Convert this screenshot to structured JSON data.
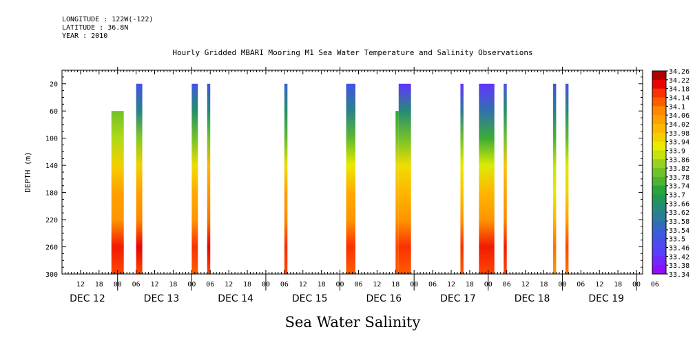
{
  "meta": {
    "longitude": "LONGITUDE : 122W(-122)",
    "latitude": "LATITUDE : 36.8N",
    "year": "YEAR : 2010"
  },
  "chart_data": {
    "type": "heatmap",
    "title": "Hourly Gridded MBARI Mooring M1 Sea Water Temperature and Salinity Observations",
    "bottom_label": "Sea Water Salinity",
    "ylabel": "DEPTH (m)",
    "ylim": [
      0,
      300
    ],
    "y_ticks": [
      20,
      60,
      100,
      140,
      180,
      220,
      260,
      300
    ],
    "x_unit": "hours since DEC 12 00:00, 2010",
    "xlim": [
      -6,
      182
    ],
    "x_hour_ticks": [
      {
        "h": 0,
        "label": "12"
      },
      {
        "h": 6,
        "label": "18"
      },
      {
        "h": 12,
        "label": "00"
      },
      {
        "h": 18,
        "label": "06"
      },
      {
        "h": 24,
        "label": "12"
      },
      {
        "h": 30,
        "label": "18"
      },
      {
        "h": 36,
        "label": "00"
      },
      {
        "h": 42,
        "label": "06"
      },
      {
        "h": 48,
        "label": "12"
      },
      {
        "h": 54,
        "label": "18"
      },
      {
        "h": 60,
        "label": "00"
      },
      {
        "h": 66,
        "label": "06"
      },
      {
        "h": 72,
        "label": "12"
      },
      {
        "h": 78,
        "label": "18"
      },
      {
        "h": 84,
        "label": "00"
      },
      {
        "h": 90,
        "label": "06"
      },
      {
        "h": 96,
        "label": "12"
      },
      {
        "h": 102,
        "label": "18"
      },
      {
        "h": 108,
        "label": "00"
      },
      {
        "h": 114,
        "label": "06"
      },
      {
        "h": 120,
        "label": "12"
      },
      {
        "h": 126,
        "label": "18"
      },
      {
        "h": 132,
        "label": "00"
      },
      {
        "h": 138,
        "label": "06"
      },
      {
        "h": 144,
        "label": "12"
      },
      {
        "h": 150,
        "label": "18"
      },
      {
        "h": 156,
        "label": "00"
      },
      {
        "h": 162,
        "label": "06"
      },
      {
        "h": 168,
        "label": "12"
      },
      {
        "h": 174,
        "label": "18"
      },
      {
        "h": 180,
        "label": "00"
      },
      {
        "h": 186,
        "label": "06"
      }
    ],
    "x_day_labels": [
      {
        "h": 0,
        "label": "DEC 12"
      },
      {
        "h": 24,
        "label": "DEC 13"
      },
      {
        "h": 48,
        "label": "DEC 14"
      },
      {
        "h": 72,
        "label": "DEC 15"
      },
      {
        "h": 96,
        "label": "DEC 16"
      },
      {
        "h": 120,
        "label": "DEC 17"
      },
      {
        "h": 144,
        "label": "DEC 18"
      },
      {
        "h": 168,
        "label": "DEC 19"
      }
    ],
    "colorbar": {
      "min": 33.34,
      "max": 34.26,
      "labels": [
        "34.26",
        "34.22",
        "34.18",
        "34.14",
        "34.1",
        "34.06",
        "34.02",
        "33.98",
        "33.94",
        "33.9",
        "33.86",
        "33.82",
        "33.78",
        "33.74",
        "33.7",
        "33.66",
        "33.62",
        "33.58",
        "33.54",
        "33.5",
        "33.46",
        "33.42",
        "33.38",
        "33.34"
      ]
    },
    "profile_depths": [
      20,
      60,
      100,
      140,
      180,
      220,
      260,
      300
    ],
    "columns": [
      {
        "h_start": 10,
        "h_end": 14,
        "top_depth": 60,
        "profile": [
          null,
          33.8,
          33.86,
          33.96,
          34.04,
          34.06,
          34.18,
          34.14
        ]
      },
      {
        "h_start": 18,
        "h_end": 20,
        "top_depth": 20,
        "profile": [
          33.5,
          33.62,
          33.82,
          33.96,
          34.04,
          34.08,
          34.2,
          34.14
        ]
      },
      {
        "h_start": 36,
        "h_end": 38,
        "top_depth": 20,
        "profile": [
          33.5,
          33.66,
          33.8,
          33.94,
          34.02,
          34.06,
          34.16,
          34.12
        ]
      },
      {
        "h_start": 41,
        "h_end": 42,
        "top_depth": 20,
        "profile": [
          33.5,
          33.64,
          33.8,
          34.0,
          34.06,
          34.1,
          34.2,
          34.14
        ]
      },
      {
        "h_start": 66,
        "h_end": 67,
        "top_depth": 20,
        "profile": [
          33.54,
          33.66,
          33.78,
          33.94,
          34.04,
          34.08,
          34.16,
          34.14
        ]
      },
      {
        "h_start": 86,
        "h_end": 89,
        "top_depth": 20,
        "profile": [
          33.5,
          33.62,
          33.78,
          33.92,
          34.02,
          34.06,
          34.16,
          34.12
        ]
      },
      {
        "h_start": 102,
        "h_end": 103,
        "top_depth": 60,
        "profile": [
          null,
          33.72,
          33.8,
          33.94,
          34.0,
          34.06,
          34.14,
          34.12
        ]
      },
      {
        "h_start": 103,
        "h_end": 107,
        "top_depth": 20,
        "profile": [
          33.42,
          33.64,
          33.8,
          33.94,
          34.0,
          34.06,
          34.16,
          34.12
        ]
      },
      {
        "h_start": 123,
        "h_end": 124,
        "top_depth": 20,
        "profile": [
          33.42,
          33.6,
          33.8,
          33.92,
          33.98,
          34.06,
          34.16,
          34.12
        ]
      },
      {
        "h_start": 129,
        "h_end": 134,
        "top_depth": 20,
        "profile": [
          33.42,
          33.58,
          33.74,
          33.9,
          34.0,
          34.06,
          34.18,
          34.14
        ]
      },
      {
        "h_start": 137,
        "h_end": 138,
        "top_depth": 20,
        "profile": [
          33.5,
          33.66,
          33.8,
          33.98,
          34.04,
          34.08,
          34.18,
          34.14
        ]
      },
      {
        "h_start": 153,
        "h_end": 154,
        "top_depth": 20,
        "profile": [
          33.5,
          33.62,
          33.76,
          33.88,
          33.92,
          34.0,
          34.1,
          34.06
        ]
      },
      {
        "h_start": 157,
        "h_end": 158,
        "top_depth": 20,
        "profile": [
          33.5,
          33.64,
          33.78,
          33.9,
          33.96,
          34.04,
          34.14,
          34.1
        ]
      }
    ]
  }
}
